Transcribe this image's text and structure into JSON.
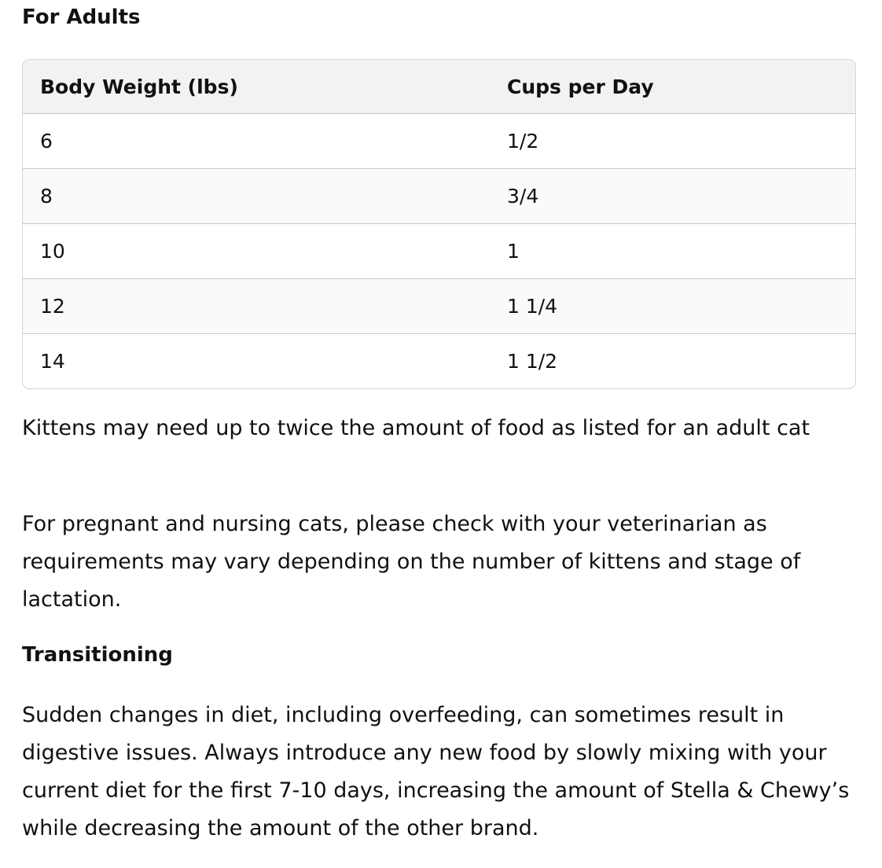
{
  "adults_heading": "For Adults",
  "table": {
    "headers": [
      "Body Weight (lbs)",
      "Cups per Day"
    ],
    "rows": [
      [
        "6",
        "1/2"
      ],
      [
        "8",
        "3/4"
      ],
      [
        "10",
        "1"
      ],
      [
        "12",
        "1 1/4"
      ],
      [
        "14",
        "1 1/2"
      ]
    ]
  },
  "paragraphs": [
    "Kittens may need up to twice the amount of food as listed for an adult cat",
    "For pregnant and nursing cats, please check with your veterinarian as requirements may vary depending on the number of kittens and stage of lactation."
  ],
  "transition_heading": "Transitioning",
  "transition_text": "Sudden changes in diet, including overfeeding, can sometimes result in digestive issues. Always introduce any new food by slowly mixing with your current diet for the first 7-10 days, increasing the amount of Stella & Chewy’s while decreasing the amount of the other brand."
}
